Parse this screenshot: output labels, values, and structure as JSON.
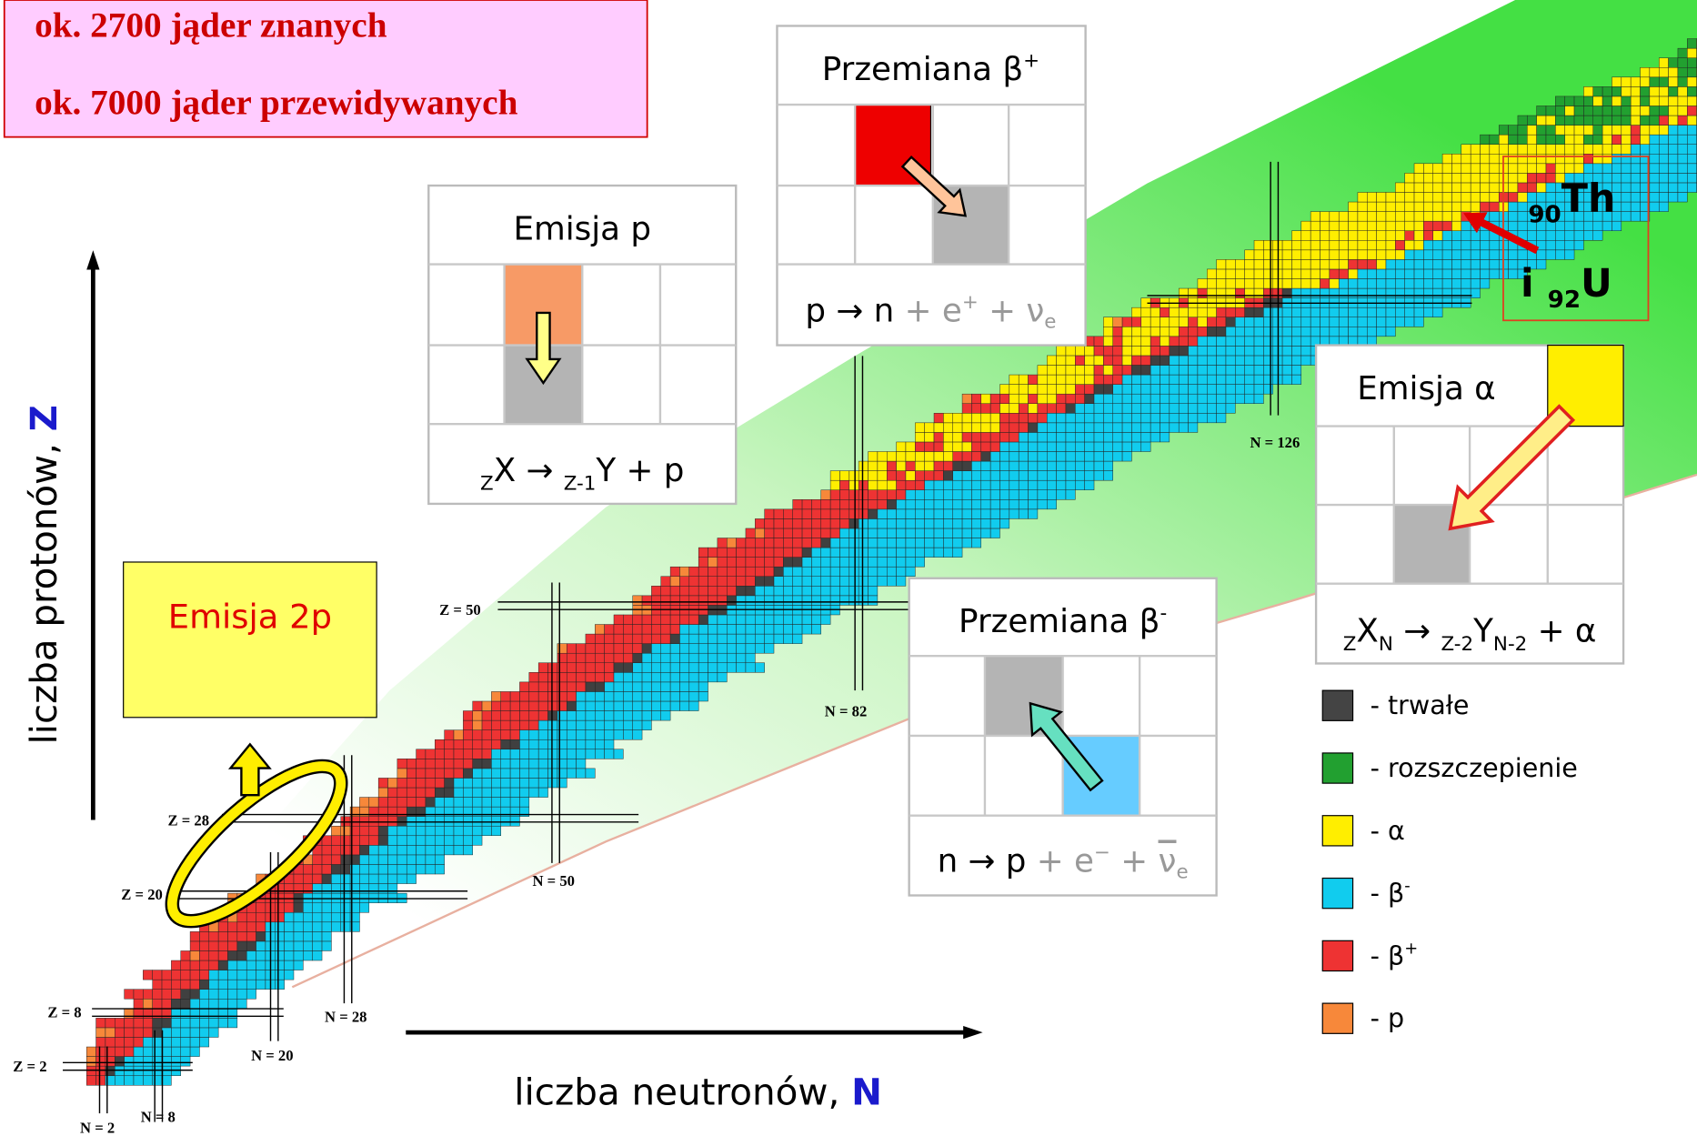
{
  "header": {
    "known": "ok. 2700 jąder znanych",
    "predicted": "ok. 7000 jąder przewidywanych"
  },
  "axes": {
    "y_label": "liczba protonów, ",
    "y_symbol": "Z",
    "x_label": "liczba neutronów, ",
    "x_symbol": "N"
  },
  "panels": {
    "proton": {
      "title": "Emisja p",
      "formula": [
        "Z",
        "X → ",
        "Z-1",
        "Y + p"
      ]
    },
    "beta_plus": {
      "title": [
        "Przemiana β",
        "+"
      ],
      "formula": [
        "p → n",
        " + e",
        "+",
        " + ν",
        "e"
      ]
    },
    "alpha": {
      "title": "Emisja α",
      "formula": [
        "Z",
        "X",
        "N",
        " → ",
        "Z-2",
        "Y",
        "N-2",
        " + α"
      ]
    },
    "beta_minus": {
      "title": [
        "Przemiana β",
        "-"
      ],
      "formula": [
        "n → p",
        " + e",
        "−",
        " + ",
        "ν",
        "e"
      ]
    },
    "two_proton": {
      "title": "Emisja 2p"
    }
  },
  "magic": {
    "z": [
      "Z = 2",
      "Z = 8",
      "Z = 20",
      "Z = 28",
      "Z = 50"
    ],
    "n": [
      "N = 2",
      "N = 8",
      "N = 20",
      "N = 28",
      "N = 50",
      "N = 82",
      "N = 126"
    ]
  },
  "nuclei": {
    "th": [
      "90",
      "Th"
    ],
    "u": [
      "i ",
      "92",
      "U"
    ]
  },
  "legend": [
    "- trwałe",
    "- rozszczepienie",
    "- α",
    "- β",
    "-",
    "- β",
    "+",
    "- p"
  ]
}
